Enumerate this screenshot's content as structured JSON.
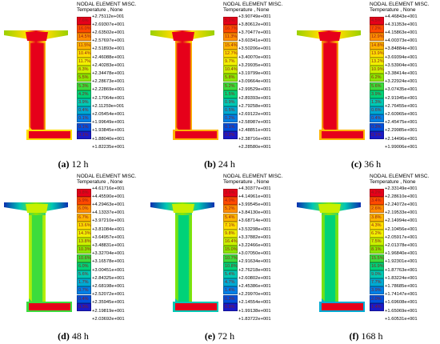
{
  "legend_common": {
    "header": "NODAL ELEMENT MISC.",
    "subheader": "Temperature , None"
  },
  "colors": [
    "#e6001a",
    "#ff4a00",
    "#ff8c00",
    "#ffb400",
    "#ffdd00",
    "#f0f000",
    "#c8f000",
    "#8ce600",
    "#3cdc3c",
    "#00d278",
    "#00c8b4",
    "#00aad2",
    "#0080e6",
    "#0050dc",
    "#1a1ac8"
  ],
  "panels": [
    {
      "id": "a",
      "caption_label": "(a)",
      "caption_time": "12 h",
      "percents": [
        "7.6%",
        "16.0%",
        "14.5%",
        "11.5%",
        "10.4%",
        "11.7%",
        "8.3%",
        "5.5%",
        "5.3%",
        "4.2%",
        "3.9%",
        "0.4%",
        "0.1%",
        "0.1%",
        "0.1%"
      ],
      "values": [
        "+2.75112e+001",
        "+2.69307e+001",
        "+2.63502e+001",
        "+2.57697e+001",
        "+2.51893e+001",
        "+2.46088e+001",
        "+2.40283e+001",
        "+2.34478e+001",
        "+2.28673e+001",
        "+2.22869e+001",
        "+2.17064e+001",
        "+2.11259e+001",
        "+2.05454e+001",
        "+1.99649e+001",
        "+1.93845e+001",
        "+1.88040e+001",
        "+1.82235e+001"
      ]
    },
    {
      "id": "b",
      "caption_label": "(b)",
      "caption_time": "24 h",
      "percents": [
        "5.2%",
        "16.7%",
        "11.3%",
        "15.4%",
        "12.7%",
        "9.7%",
        "10.4%",
        "5.8%",
        "5.2%",
        "1.5%",
        "0.9%",
        "0.5%",
        "0.2%",
        "0.1%",
        "0.2%"
      ],
      "values": [
        "+3.90749e+001",
        "+3.80612e+001",
        "+3.70477e+001",
        "+3.60341e+001",
        "+3.50206e+001",
        "+3.40070e+001",
        "+3.29935e+001",
        "+3.19799e+001",
        "+3.09664e+001",
        "+2.99529e+001",
        "+2.89393e+001",
        "+2.79258e+001",
        "+2.69122e+001",
        "+2.58987e+001",
        "+2.48851e+001",
        "+2.38716e+001",
        "+2.28580e+001"
      ]
    },
    {
      "id": "c",
      "caption_label": "(c)",
      "caption_time": "36 h",
      "percents": [
        "4.5%",
        "7.2%",
        "12.9%",
        "14.8%",
        "13.9%",
        "13.2%",
        "10.9%",
        "6.2%",
        "5.6%",
        "3.9%",
        "1.3%",
        "0.6%",
        "0.4%",
        "0.3%",
        "0.1%"
      ],
      "values": [
        "+4.46843e+001",
        "+4.31353e+001",
        "+4.15863e+001",
        "+4.00373e+001",
        "+3.84884e+001",
        "+3.69394e+001",
        "+3.53904e+001",
        "+3.38414e+001",
        "+3.22924e+001",
        "+3.07435e+001",
        "+2.91945e+001",
        "+2.76455e+001",
        "+2.60965e+001",
        "+2.45475e+001",
        "+2.29985e+001",
        "+2.14496e+001",
        "+1.99006e+001"
      ]
    },
    {
      "id": "d",
      "caption_label": "(d)",
      "caption_time": "48 h",
      "percents": [
        "3.8%",
        "5.9%",
        "6.0%",
        "6.7%",
        "13.6%",
        "14.3%",
        "13.8%",
        "10.3%",
        "10.6%",
        "6.0%",
        "5.6%",
        "1.7%",
        "0.7%",
        "0.4%",
        "0.3%"
      ],
      "values": [
        "+4.61716e+001",
        "+4.45590e+001",
        "+4.29463e+001",
        "+4.13337e+001",
        "+3.97210e+001",
        "+3.81084e+001",
        "+3.64957e+001",
        "+3.48831e+001",
        "+3.32704e+001",
        "+3.16578e+001",
        "+3.00451e+001",
        "+2.84325e+001",
        "+2.68198e+001",
        "+2.52072e+001",
        "+2.35945e+001",
        "+2.19819e+001",
        "+2.03692e+001"
      ]
    },
    {
      "id": "e",
      "caption_label": "(e)",
      "caption_time": "72 h",
      "percents": [
        "3.6%",
        "4.0%",
        "5.2%",
        "5.4%",
        "7.1%",
        "9.8%",
        "16.4%",
        "15.0%",
        "10.7%",
        "10.8%",
        "5.4%",
        "4.7%",
        "1.4%",
        "0.3%",
        "0.9%"
      ],
      "values": [
        "+4.30377e+001",
        "+4.14961e+001",
        "+3.99545e+001",
        "+3.84130e+001",
        "+3.68714e+001",
        "+3.53298e+001",
        "+3.37882e+001",
        "+3.22466e+001",
        "+3.07050e+001",
        "+2.91634e+001",
        "+2.76218e+001",
        "+2.60802e+001",
        "+2.45386e+001",
        "+2.29970e+001",
        "+2.14554e+001",
        "+1.99138e+001",
        "+1.83722e+001"
      ]
    },
    {
      "id": "f",
      "caption_label": "(f)",
      "caption_time": "168 h",
      "percents": [
        "4.2%",
        "3.4%",
        "2.6%",
        "3.8%",
        "4.3%",
        "6.2%",
        "7.5%",
        "8.1%",
        "15.5%",
        "16.9%",
        "9.0%",
        "7.7%",
        "3.9%",
        "2.0%",
        "1.4%"
      ],
      "values": [
        "+2.33149e+001",
        "+2.28610e+001",
        "+2.24072e+001",
        "+2.19533e+001",
        "+2.14994e+001",
        "+2.10456e+001",
        "+2.05917e+001",
        "+2.01378e+001",
        "+1.96840e+001",
        "+1.92301e+001",
        "+1.87763e+001",
        "+1.83224e+001",
        "+1.78685e+001",
        "+1.74147e+001",
        "+1.69608e+001",
        "+1.65069e+001",
        "+1.60531e+001"
      ]
    }
  ]
}
